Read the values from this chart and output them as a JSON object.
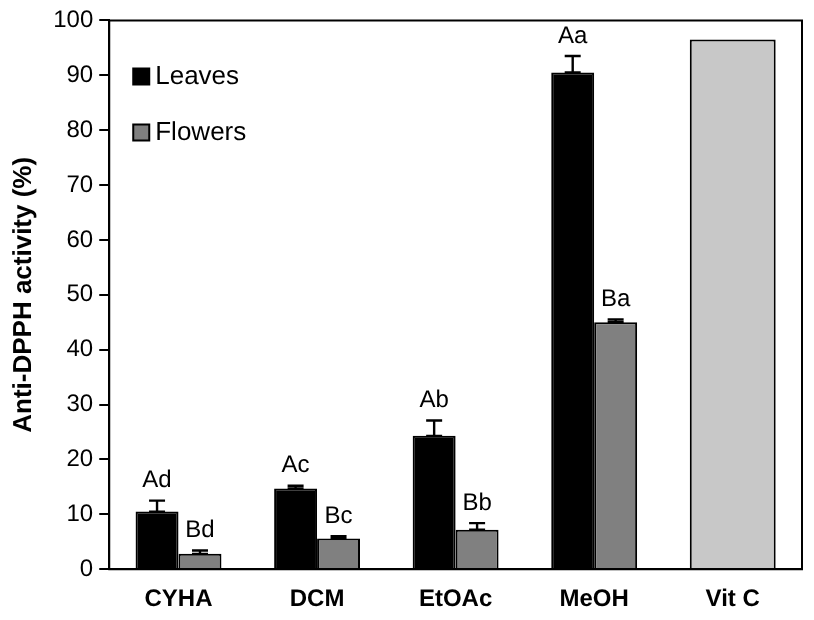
{
  "chart_data": {
    "type": "bar",
    "ylabel": "Anti-DPPH activity (%)",
    "categories": [
      "CYHA",
      "DCM",
      "EtOAc",
      "MeOH",
      "Vit C"
    ],
    "series": [
      {
        "name": "Leaves",
        "color": "#000000",
        "values": [
          10.5,
          14.7,
          24.3,
          90.5,
          null
        ],
        "errors": [
          [
            10.5,
            12.5
          ],
          [
            14.7,
            15.2
          ],
          [
            24.3,
            27.1
          ],
          [
            90.5,
            93.5
          ],
          null
        ],
        "value_labels": [
          "Ad",
          "Ac",
          "Ab",
          "Aa",
          null
        ]
      },
      {
        "name": "Flowers",
        "color": "#808080",
        "values": [
          2.8,
          5.6,
          7.2,
          45,
          null
        ],
        "errors": [
          [
            2.8,
            3.4
          ],
          [
            5.6,
            6
          ],
          [
            7.2,
            8.4
          ],
          [
            45,
            45.5
          ],
          null
        ],
        "value_labels": [
          "Bd",
          "Bc",
          "Bb",
          "Ba",
          null
        ]
      },
      {
        "color": "#c8c8c8",
        "values": [
          null,
          null,
          null,
          null,
          96.5
        ]
      }
    ],
    "ylim": [
      0,
      100
    ],
    "yticks": [
      0,
      10,
      20,
      30,
      40,
      50,
      60,
      70,
      80,
      90,
      100
    ],
    "grid": false,
    "legend": "top left"
  }
}
